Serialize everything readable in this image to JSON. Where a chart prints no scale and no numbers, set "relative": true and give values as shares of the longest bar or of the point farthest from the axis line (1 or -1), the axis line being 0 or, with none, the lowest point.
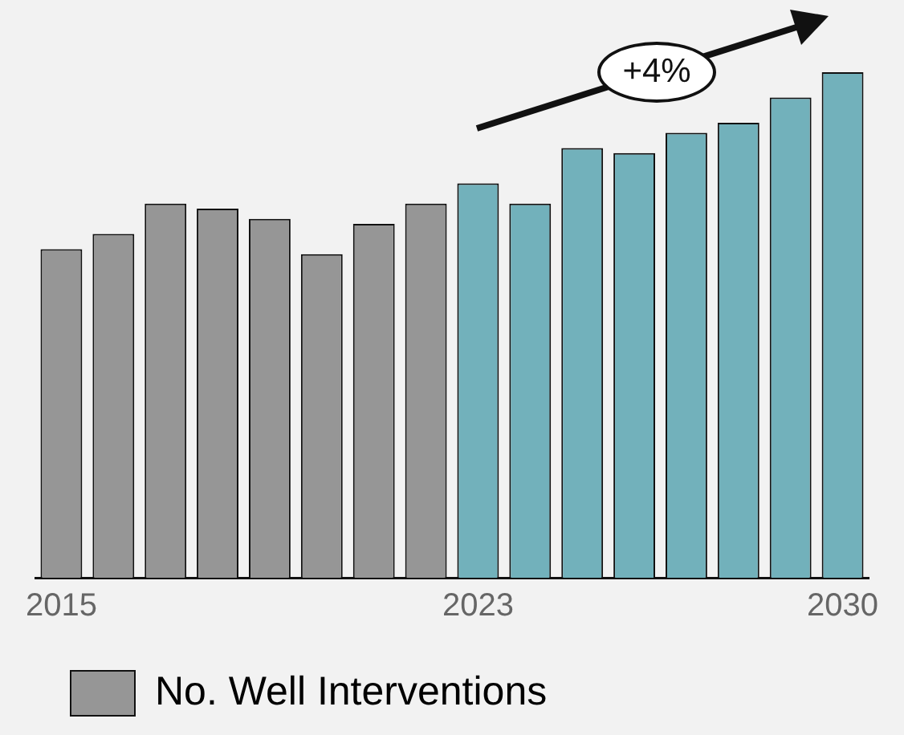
{
  "chart_data": {
    "type": "bar",
    "relative": true,
    "categories": [
      "2015",
      null,
      null,
      null,
      null,
      null,
      null,
      null,
      "2023",
      null,
      null,
      null,
      null,
      null,
      null,
      "2030"
    ],
    "series": [
      {
        "name": "No. Well Interventions",
        "color": "#969696",
        "colors": [
          "#969696",
          "#969696",
          "#969696",
          "#969696",
          "#969696",
          "#969696",
          "#969696",
          "#969696",
          "#72b1bb",
          "#72b1bb",
          "#72b1bb",
          "#72b1bb",
          "#72b1bb",
          "#72b1bb",
          "#72b1bb",
          "#72b1bb"
        ],
        "values": [
          0.65,
          0.68,
          0.74,
          0.73,
          0.71,
          0.64,
          0.7,
          0.74,
          0.78,
          0.74,
          0.85,
          0.84,
          0.88,
          0.9,
          0.95,
          1
        ]
      }
    ],
    "annotations": [
      "+4%"
    ],
    "legend": "bottom left",
    "grid": false
  }
}
